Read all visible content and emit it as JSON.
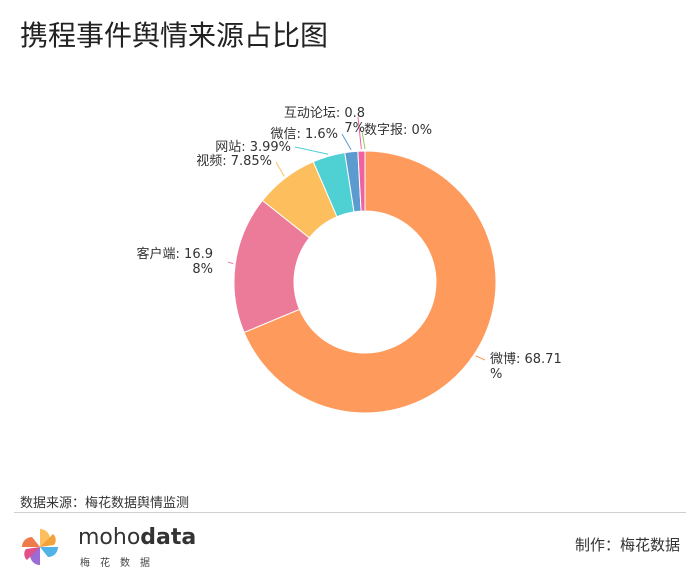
{
  "title": "携程事件舆情来源占比图",
  "chart_data": {
    "type": "pie",
    "variant": "donut",
    "title": "携程事件舆情来源占比图",
    "slices": [
      {
        "name": "微博",
        "value": 68.71,
        "label": [
          "微博: 68.71",
          "%"
        ],
        "color": "#fe9a5b"
      },
      {
        "name": "客户端",
        "value": 16.98,
        "label": [
          "客户端: 16.9",
          "8%"
        ],
        "color": "#ec7a99"
      },
      {
        "name": "视频",
        "value": 7.85,
        "label": [
          "视频: 7.85%"
        ],
        "color": "#fdbf5d"
      },
      {
        "name": "网站",
        "value": 3.99,
        "label": [
          "网站: 3.99%"
        ],
        "color": "#4fd0d3"
      },
      {
        "name": "微信",
        "value": 1.6,
        "label": [
          "微信: 1.6%"
        ],
        "color": "#5c9bcf"
      },
      {
        "name": "互动论坛",
        "value": 0.87,
        "label": [
          "互动论坛: 0.8",
          "7%"
        ],
        "color": "#ef61a1"
      },
      {
        "name": "数字报",
        "value": 0,
        "label": [
          "数字报: 0%"
        ],
        "color": "#8ecb5c"
      }
    ]
  },
  "footer": {
    "source": "数据来源：梅花数据舆情监测",
    "brand_light": "moho",
    "brand_bold": "data",
    "brand_sub": "梅花数据",
    "credit": "制作：梅花数据"
  }
}
